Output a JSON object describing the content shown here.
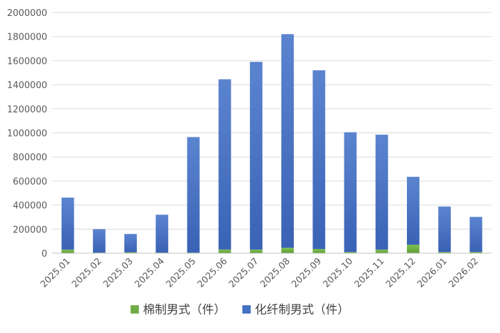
{
  "chart_data": {
    "type": "bar",
    "stacked": true,
    "categories": [
      "2025.01",
      "2025.02",
      "2025.03",
      "2025.04",
      "2025.05",
      "2025.06",
      "2025.07",
      "2025.08",
      "2025.09",
      "2025.10",
      "2025.11",
      "2025.12",
      "2026.01",
      "2026.02"
    ],
    "series": [
      {
        "name": "棉制男式（件）",
        "color": "#70ad47",
        "values": [
          30000,
          5000,
          8000,
          5000,
          5000,
          30000,
          30000,
          45000,
          35000,
          10000,
          30000,
          70000,
          10000,
          10000
        ]
      },
      {
        "name": "化纤制男式（件）",
        "color": "#4472c4",
        "values": [
          432000,
          195000,
          152000,
          315000,
          960000,
          1415000,
          1560000,
          1775000,
          1485000,
          995000,
          955000,
          565000,
          378000,
          292000
        ]
      }
    ],
    "ylim": [
      0,
      2000000
    ],
    "yticks": [
      0,
      200000,
      400000,
      600000,
      800000,
      1000000,
      1200000,
      1400000,
      1600000,
      1800000,
      2000000
    ],
    "grid": true,
    "legend_position": "bottom"
  }
}
